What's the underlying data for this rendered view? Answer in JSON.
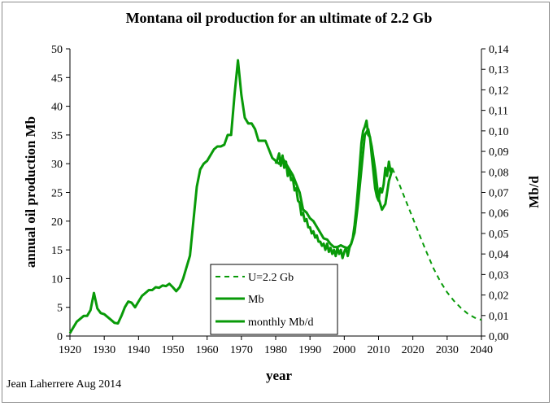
{
  "chart_data": {
    "type": "line",
    "title": "Montana oil production for an ultimate of 2.2 Gb",
    "xlabel": "year",
    "ylabel": "annual oil production Mb",
    "y2label": "Mb/d",
    "xlim": [
      1920,
      2040
    ],
    "ylim": [
      0,
      50
    ],
    "y2lim": [
      0,
      0.14
    ],
    "xticks": [
      "1920",
      "1930",
      "1940",
      "1950",
      "1960",
      "1970",
      "1980",
      "1990",
      "2000",
      "2010",
      "2020",
      "2030",
      "2040"
    ],
    "yticks": [
      "0",
      "5",
      "10",
      "15",
      "20",
      "25",
      "30",
      "35",
      "40",
      "45",
      "50"
    ],
    "y2ticks": [
      "0,00",
      "0,01",
      "0,02",
      "0,03",
      "0,04",
      "0,05",
      "0,06",
      "0,07",
      "0,08",
      "0,09",
      "0,10",
      "0,11",
      "0,12",
      "0,13",
      "0,14"
    ],
    "grid": false,
    "legend_position": "bottom-center",
    "color": "#089a08",
    "series": [
      {
        "name": "U=2.2 Gb",
        "style": "dashed",
        "x": [
          2014,
          2016,
          2018,
          2020,
          2022,
          2024,
          2026,
          2028,
          2030,
          2032,
          2034,
          2036,
          2038,
          2040
        ],
        "y": [
          29.2,
          26.5,
          23.5,
          20.5,
          17.5,
          14.6,
          11.8,
          9.5,
          7.6,
          6.1,
          4.9,
          3.9,
          3.2,
          2.8
        ]
      },
      {
        "name": "Mb",
        "x": [
          1920,
          1921,
          1922,
          1923,
          1924,
          1925,
          1926,
          1927,
          1928,
          1929,
          1930,
          1931,
          1932,
          1933,
          1934,
          1935,
          1936,
          1937,
          1938,
          1939,
          1940,
          1941,
          1942,
          1943,
          1944,
          1945,
          1946,
          1947,
          1948,
          1949,
          1950,
          1951,
          1952,
          1953,
          1954,
          1955,
          1956,
          1957,
          1958,
          1959,
          1960,
          1961,
          1962,
          1963,
          1964,
          1965,
          1966,
          1967,
          1968,
          1969,
          1970,
          1971,
          1972,
          1973,
          1974,
          1975,
          1976,
          1977,
          1978,
          1979,
          1980,
          1981,
          1982,
          1983,
          1984,
          1985,
          1986,
          1987,
          1988,
          1989,
          1990,
          1991,
          1992,
          1993,
          1994,
          1995,
          1996,
          1997,
          1998,
          1999,
          2000,
          2001,
          2002,
          2003,
          2004,
          2005,
          2006,
          2007,
          2008,
          2009,
          2010,
          2011,
          2012,
          2013,
          2014
        ],
        "y": [
          0.5,
          1.5,
          2.5,
          3,
          3.5,
          3.5,
          4.5,
          7.5,
          4.8,
          4,
          3.8,
          3.3,
          2.8,
          2.3,
          2.2,
          3.5,
          5,
          6,
          5.8,
          5,
          6,
          7,
          7.5,
          8,
          8,
          8.5,
          8.4,
          8.8,
          8.7,
          9.1,
          8.5,
          7.8,
          8.5,
          10,
          12,
          14,
          20,
          26,
          29,
          30,
          30.5,
          31.5,
          32.5,
          33,
          33,
          33.3,
          35,
          35,
          42,
          48,
          42,
          38,
          37,
          37,
          36,
          34,
          34,
          34,
          32.5,
          31,
          30.5,
          30,
          31,
          30,
          29,
          28,
          26.5,
          25,
          22,
          21.5,
          20.5,
          20,
          19,
          18,
          17,
          16.8,
          16,
          15.5,
          15.5,
          15.8,
          15.5,
          15.3,
          16,
          18,
          23,
          29,
          35,
          36,
          33,
          29,
          24,
          22,
          23,
          27,
          29
        ]
      },
      {
        "name": "monthly Mb/d",
        "x": [
          1980,
          1980.5,
          1981,
          1981.5,
          1982,
          1982.5,
          1983,
          1983.5,
          1984,
          1984.5,
          1985,
          1985.5,
          1986,
          1986.5,
          1987,
          1987.5,
          1988,
          1988.5,
          1989,
          1989.5,
          1990,
          1990.5,
          1991,
          1991.5,
          1992,
          1992.5,
          1993,
          1993.5,
          1994,
          1994.5,
          1995,
          1995.5,
          1996,
          1996.5,
          1997,
          1997.5,
          1998,
          1998.5,
          1999,
          1999.5,
          2000,
          2000.5,
          2001,
          2001.5,
          2002,
          2002.5,
          2003,
          2003.5,
          2004,
          2004.5,
          2005,
          2005.5,
          2006,
          2006.5,
          2007,
          2007.5,
          2008,
          2008.5,
          2009,
          2009.5,
          2010,
          2010.5,
          2011,
          2011.5,
          2012,
          2012.5,
          2013,
          2013.5,
          2014
        ],
        "y": [
          0.084,
          0.086,
          0.089,
          0.083,
          0.088,
          0.082,
          0.085,
          0.078,
          0.081,
          0.076,
          0.077,
          0.071,
          0.072,
          0.066,
          0.065,
          0.059,
          0.06,
          0.056,
          0.057,
          0.053,
          0.053,
          0.05,
          0.051,
          0.048,
          0.049,
          0.046,
          0.046,
          0.044,
          0.045,
          0.042,
          0.045,
          0.041,
          0.043,
          0.04,
          0.042,
          0.039,
          0.043,
          0.04,
          0.042,
          0.038,
          0.041,
          0.043,
          0.039,
          0.043,
          0.045,
          0.048,
          0.054,
          0.062,
          0.072,
          0.083,
          0.094,
          0.1,
          0.102,
          0.105,
          0.098,
          0.097,
          0.088,
          0.08,
          0.072,
          0.068,
          0.066,
          0.072,
          0.07,
          0.074,
          0.082,
          0.078,
          0.085,
          0.08,
          0.082
        ]
      }
    ]
  },
  "credit": "Jean Laherrere Aug 2014"
}
